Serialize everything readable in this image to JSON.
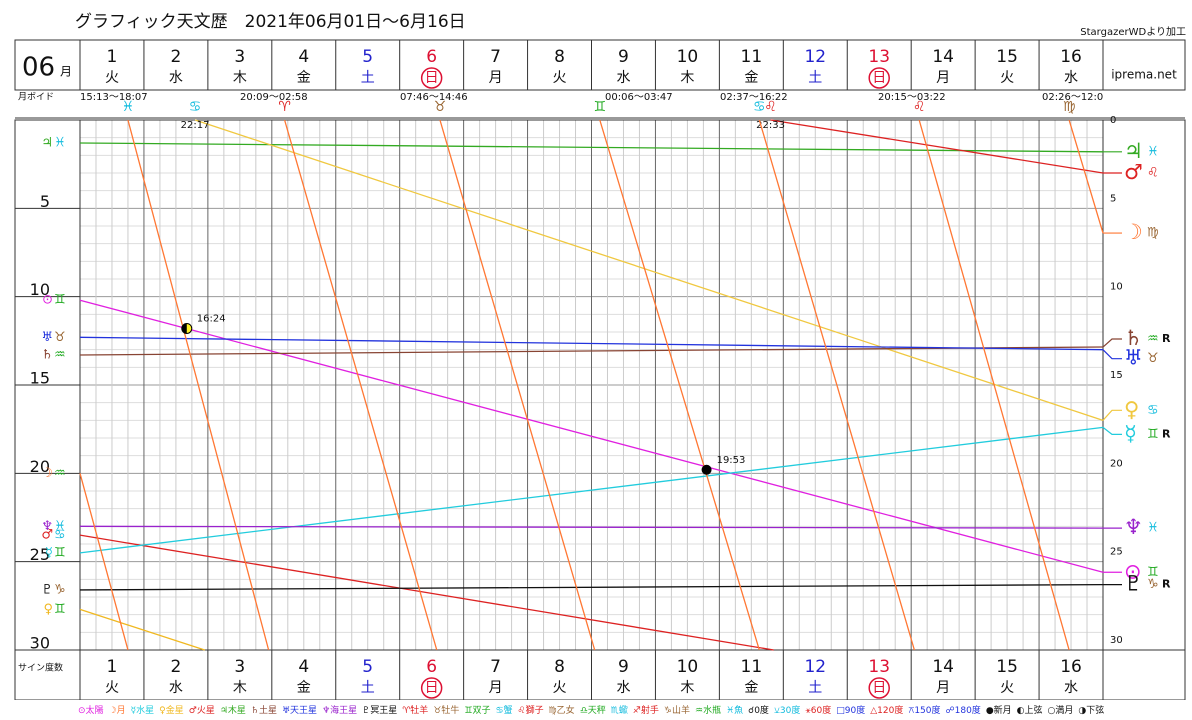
{
  "chart_data": {
    "type": "ephemeris",
    "title": "グラフィック天文歴　2021年06月01日～6月16日",
    "source": "StargazerWDより加工",
    "month": "06",
    "month_unit": "月",
    "site": "iprema.net",
    "void_label": "月ボイド",
    "y_label": "サイン度数",
    "days": [
      1,
      2,
      3,
      4,
      5,
      6,
      7,
      8,
      9,
      10,
      11,
      12,
      13,
      14,
      15,
      16
    ],
    "weekdays": [
      "火",
      "水",
      "木",
      "金",
      "土",
      "日",
      "月",
      "火",
      "水",
      "木",
      "金",
      "土",
      "日",
      "月",
      "火",
      "水"
    ],
    "weekday_colors": {
      "土": "#2222cc",
      "日": "#dd1133"
    },
    "xlim": [
      0,
      16
    ],
    "ylim": [
      0,
      30
    ],
    "yticks_left": [
      5,
      10,
      15,
      20,
      25,
      30
    ],
    "yticks_right": [
      0,
      5,
      10,
      15,
      20,
      25,
      30
    ],
    "void": [
      "15:13～18:07",
      "20:09～02:58",
      "07:46～14:46",
      "00:06～03:47",
      "02:37～16:22",
      "20:15～03:22",
      "02:26～12:0"
    ],
    "series": [
      {
        "planet": "♃",
        "sign": "♓",
        "color": "#33aa22",
        "sign_color": "#11bbdd",
        "x": [
          0,
          16
        ],
        "y": [
          1.3,
          1.8
        ]
      },
      {
        "planet": "♂",
        "sign": "♋",
        "color": "#dd2222",
        "sign_color": "#11bbdd",
        "x": [
          0,
          10.85
        ],
        "y": [
          23.5,
          30
        ]
      },
      {
        "planet": "♂",
        "sign": "♌",
        "color": "#dd2222",
        "sign_color": "#dd2222",
        "x": [
          10.8,
          16
        ],
        "y": [
          0,
          3.0
        ],
        "ingress_time": "22:33"
      },
      {
        "planet": "⊙",
        "sign": "♊",
        "color": "#e020e0",
        "sign_color": "#22aa22",
        "x": [
          0,
          16
        ],
        "y": [
          10.2,
          25.6
        ]
      },
      {
        "planet": "☿",
        "sign": "♊",
        "retro": "R",
        "color": "#22ccdd",
        "sign_color": "#22aa22",
        "x": [
          0,
          16
        ],
        "y": [
          24.5,
          17.4
        ]
      },
      {
        "planet": "♀",
        "sign": "♊",
        "color": "#f0b820",
        "sign_color": "#22aa22",
        "x": [
          0,
          1.95
        ],
        "y": [
          27.7,
          30
        ]
      },
      {
        "planet": "♀",
        "sign": "♋",
        "color": "#f0c840",
        "sign_color": "#11bbdd",
        "x": [
          1.8,
          16
        ],
        "y": [
          0,
          17.0
        ],
        "ingress_time": "22:17"
      },
      {
        "planet": "♄",
        "sign": "♒",
        "retro": "R",
        "color": "#884433",
        "sign_color": "#22aa22",
        "x": [
          0,
          16
        ],
        "y": [
          13.3,
          12.85
        ]
      },
      {
        "planet": "♅",
        "sign": "♉",
        "color": "#2233dd",
        "sign_color": "#996633",
        "x": [
          0,
          16
        ],
        "y": [
          12.3,
          13.0
        ]
      },
      {
        "planet": "♆",
        "sign": "♓",
        "color": "#9922cc",
        "sign_color": "#11bbdd",
        "x": [
          0,
          16
        ],
        "y": [
          23.0,
          23.1
        ]
      },
      {
        "planet": "♇",
        "sign": "♑",
        "retro": "R",
        "color": "#111111",
        "sign_color": "#996633",
        "x": [
          0,
          16
        ],
        "y": [
          26.6,
          26.3
        ]
      },
      {
        "planet": "☽",
        "sign": "♒",
        "color": "#ff7733",
        "sign_color": "#22aa22",
        "x": [
          0,
          0.75
        ],
        "y": [
          20,
          30
        ]
      },
      {
        "planet": "☽",
        "sign": "♓",
        "color": "#ff7733",
        "sign_color": "#11bbdd",
        "x": [
          0.75,
          2.95
        ],
        "y": [
          0,
          30
        ]
      },
      {
        "planet": "☽",
        "sign": "♈",
        "color": "#ff7733",
        "sign_color": "#dd2222",
        "x": [
          3.2,
          5.58
        ],
        "y": [
          0,
          30
        ]
      },
      {
        "planet": "☽",
        "sign": "♉",
        "color": "#ff7733",
        "sign_color": "#996633",
        "x": [
          5.63,
          8.05
        ],
        "y": [
          0,
          30
        ]
      },
      {
        "planet": "☽",
        "sign": "♊",
        "color": "#ff7733",
        "sign_color": "#22aa22",
        "x": [
          8.13,
          10.625
        ],
        "y": [
          0,
          30
        ]
      },
      {
        "planet": "☽",
        "sign": "♋",
        "color": "#ff7733",
        "sign_color": "#11bbdd",
        "x": [
          10.625,
          13.05
        ],
        "y": [
          0,
          30
        ]
      },
      {
        "planet": "☽",
        "sign": "♌",
        "color": "#ff7733",
        "sign_color": "#dd2222",
        "x": [
          13.125,
          15.47
        ],
        "y": [
          0,
          30
        ]
      },
      {
        "planet": "☽",
        "sign": "♍",
        "color": "#ff7733",
        "sign_color": "#996633",
        "x": [
          15.47,
          16
        ],
        "y": [
          0,
          6.4
        ]
      }
    ],
    "events": [
      {
        "kind": "first_quarter",
        "time": "16:24",
        "x": 1.67,
        "y": 11.8
      },
      {
        "kind": "new_moon",
        "time": "19:53",
        "x": 9.8,
        "y": 19.8
      }
    ],
    "legend": [
      {
        "text": "⊙太陽",
        "color": "#e020e0"
      },
      {
        "text": "☽月",
        "color": "#ff7733"
      },
      {
        "text": "☿水星",
        "color": "#22ccdd"
      },
      {
        "text": "♀金星",
        "color": "#f0b820"
      },
      {
        "text": "♂火星",
        "color": "#dd2222"
      },
      {
        "text": "♃木星",
        "color": "#33aa22"
      },
      {
        "text": "♄土星",
        "color": "#884433"
      },
      {
        "text": "♅天王星",
        "color": "#2233dd"
      },
      {
        "text": "♆海王星",
        "color": "#9922cc"
      },
      {
        "text": "♇冥王星",
        "color": "#111111"
      },
      {
        "text": "♈牡羊",
        "color": "#dd2222"
      },
      {
        "text": "♉牡牛",
        "color": "#996633"
      },
      {
        "text": "♊双子",
        "color": "#22aa22"
      },
      {
        "text": "♋蟹",
        "color": "#11bbdd"
      },
      {
        "text": "♌獅子",
        "color": "#dd2222"
      },
      {
        "text": "♍乙女",
        "color": "#996633"
      },
      {
        "text": "♎天秤",
        "color": "#22aa22"
      },
      {
        "text": "♏蠍",
        "color": "#11bbdd"
      },
      {
        "text": "♐射手",
        "color": "#dd2222"
      },
      {
        "text": "♑山羊",
        "color": "#996633"
      },
      {
        "text": "♒水瓶",
        "color": "#22aa22"
      },
      {
        "text": "♓魚",
        "color": "#11bbdd"
      },
      {
        "text": "☌0度",
        "color": "#111111"
      },
      {
        "text": "⚺30度",
        "color": "#11bbdd"
      },
      {
        "text": "⚹60度",
        "color": "#dd2222"
      },
      {
        "text": "□90度",
        "color": "#2233dd"
      },
      {
        "text": "△120度",
        "color": "#dd2222"
      },
      {
        "text": "⚻150度",
        "color": "#2233dd"
      },
      {
        "text": "☍180度",
        "color": "#2233dd"
      },
      {
        "text": "●新月",
        "color": "#111111"
      },
      {
        "text": "◐上弦",
        "color": "#111111"
      },
      {
        "text": "○満月",
        "color": "#111111"
      },
      {
        "text": "◑下弦",
        "color": "#111111"
      }
    ]
  }
}
